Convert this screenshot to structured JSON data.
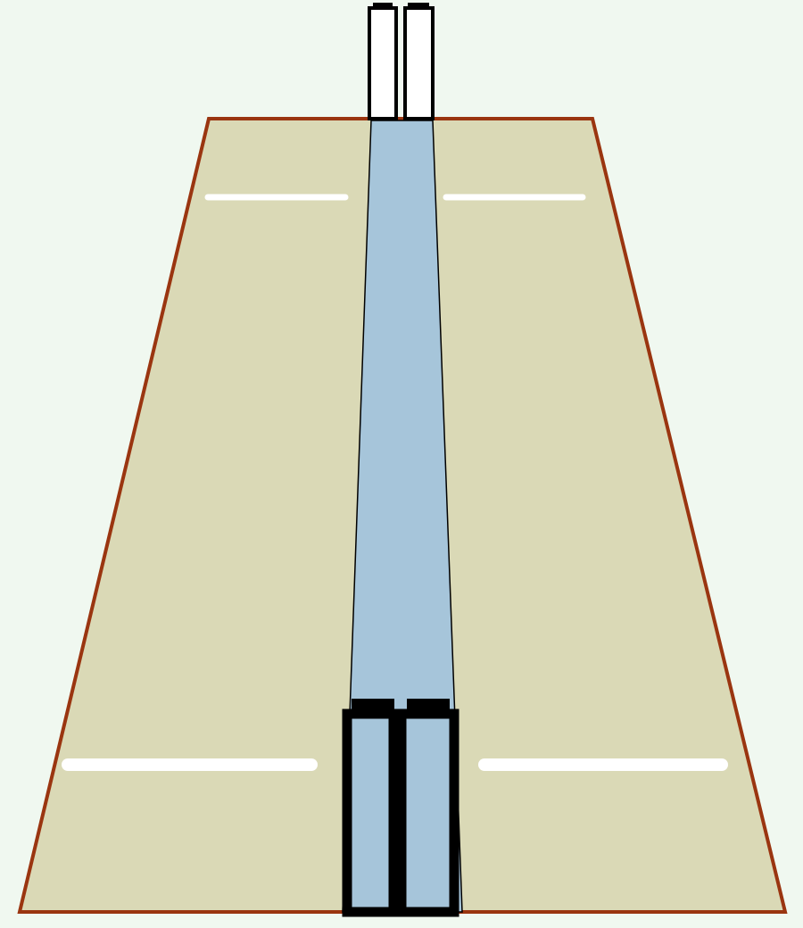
{
  "colors": {
    "background": "#f0f8f0",
    "field_fill": "#dad9b6",
    "field_stroke": "#9a3510",
    "pitch_fill": "#a6c5da",
    "pitch_stroke": "#000000",
    "crease": "#ffffff",
    "wicket_outline": "#000000",
    "wicket_near_fill": "#a6c5da"
  }
}
